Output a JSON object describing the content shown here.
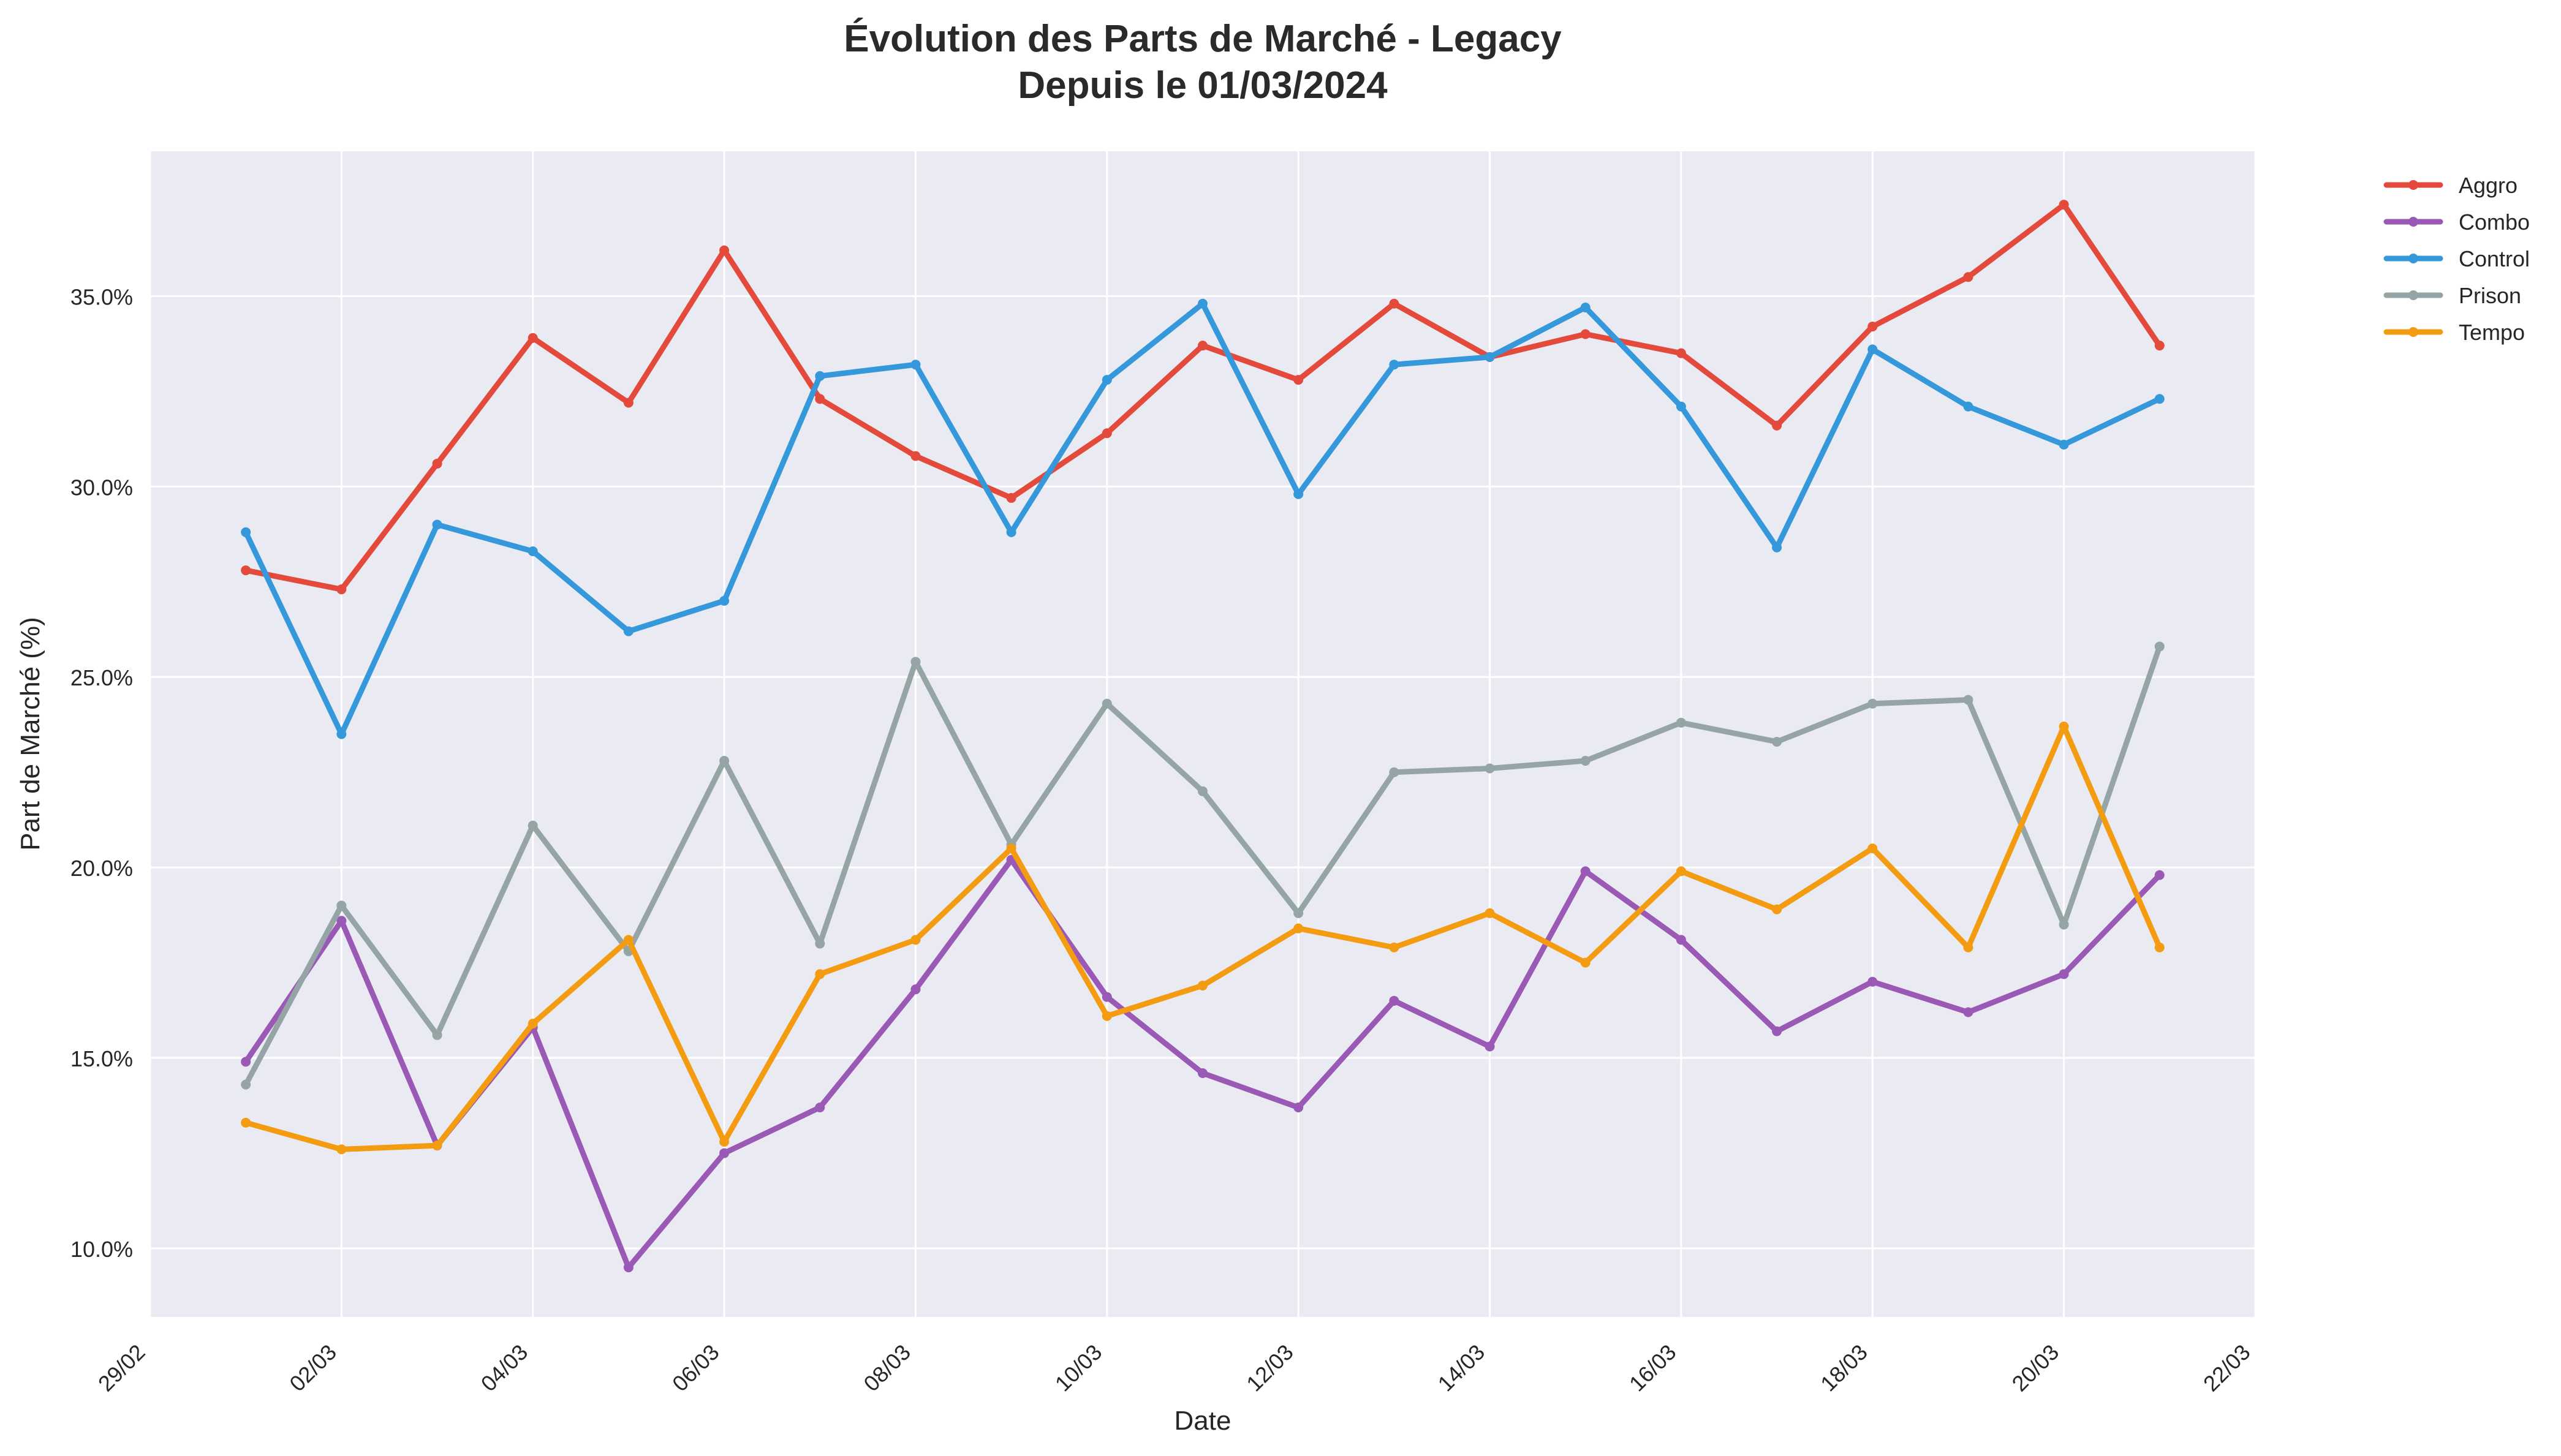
{
  "chart_data": {
    "type": "line",
    "title": "Évolution des Parts de Marché - Legacy",
    "subtitle": "Depuis le 01/03/2024",
    "xlabel": "Date",
    "ylabel": "Part de Marché (%)",
    "x": [
      "01/03",
      "02/03",
      "03/03",
      "04/03",
      "05/03",
      "06/03",
      "07/03",
      "08/03",
      "09/03",
      "10/03",
      "11/03",
      "12/03",
      "13/03",
      "14/03",
      "15/03",
      "16/03",
      "17/03",
      "18/03",
      "19/03",
      "20/03",
      "21/03"
    ],
    "xlim": [
      "29/02",
      "22/03"
    ],
    "x_ticks": [
      "29/02",
      "02/03",
      "04/03",
      "06/03",
      "08/03",
      "10/03",
      "12/03",
      "14/03",
      "16/03",
      "18/03",
      "20/03",
      "22/03"
    ],
    "ylim": [
      8.2,
      38.8
    ],
    "y_ticks": [
      10,
      15,
      20,
      25,
      30,
      35
    ],
    "y_tick_labels": [
      "10.0%",
      "15.0%",
      "20.0%",
      "25.0%",
      "30.0%",
      "35.0%"
    ],
    "grid": true,
    "legend_position": "outside-top-right",
    "series": [
      {
        "name": "Aggro",
        "color": "#e34a3c",
        "values": [
          27.8,
          27.3,
          30.6,
          33.9,
          32.2,
          36.2,
          32.3,
          30.8,
          29.7,
          31.4,
          33.7,
          32.8,
          34.8,
          33.4,
          34.0,
          33.5,
          31.6,
          34.2,
          35.5,
          37.4,
          33.7
        ]
      },
      {
        "name": "Combo",
        "color": "#9b59b6",
        "values": [
          14.9,
          18.6,
          12.7,
          15.8,
          9.5,
          12.5,
          13.7,
          16.8,
          20.2,
          16.6,
          14.6,
          13.7,
          16.5,
          15.3,
          19.9,
          18.1,
          15.7,
          17.0,
          16.2,
          17.2,
          19.8
        ]
      },
      {
        "name": "Control",
        "color": "#3498db",
        "values": [
          28.8,
          23.5,
          29.0,
          28.3,
          26.2,
          27.0,
          32.9,
          33.2,
          28.8,
          32.8,
          34.8,
          29.8,
          33.2,
          33.4,
          34.7,
          32.1,
          28.4,
          33.6,
          32.1,
          31.1,
          32.3
        ]
      },
      {
        "name": "Prison",
        "color": "#95a5a6",
        "values": [
          14.3,
          19.0,
          15.6,
          21.1,
          17.8,
          22.8,
          18.0,
          25.4,
          20.6,
          24.3,
          22.0,
          18.8,
          22.5,
          22.6,
          22.8,
          23.8,
          23.3,
          24.3,
          24.4,
          18.5,
          25.8
        ]
      },
      {
        "name": "Tempo",
        "color": "#f39c12",
        "values": [
          13.3,
          12.6,
          12.7,
          15.9,
          18.1,
          12.8,
          17.2,
          18.1,
          20.5,
          16.1,
          16.9,
          18.4,
          17.9,
          18.8,
          17.5,
          19.9,
          18.9,
          20.5,
          17.9,
          23.7,
          17.9
        ]
      }
    ]
  }
}
